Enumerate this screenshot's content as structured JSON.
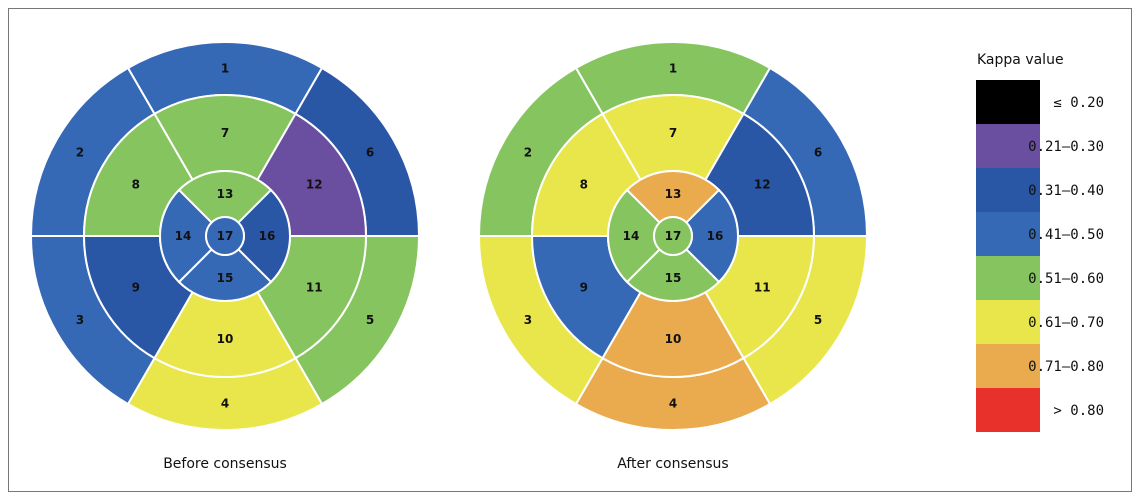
{
  "chart_data": [
    {
      "type": "bullseye",
      "caption": "Before consensus",
      "segments": [
        {
          "segment": "1",
          "category": "0.41–0.50"
        },
        {
          "segment": "2",
          "category": "0.41–0.50"
        },
        {
          "segment": "3",
          "category": "0.41–0.50"
        },
        {
          "segment": "4",
          "category": "0.61–0.70"
        },
        {
          "segment": "5",
          "category": "0.51–0.60"
        },
        {
          "segment": "6",
          "category": "0.31–0.40"
        },
        {
          "segment": "7",
          "category": "0.51–0.60"
        },
        {
          "segment": "8",
          "category": "0.51–0.60"
        },
        {
          "segment": "9",
          "category": "0.31–0.40"
        },
        {
          "segment": "10",
          "category": "0.61–0.70"
        },
        {
          "segment": "11",
          "category": "0.51–0.60"
        },
        {
          "segment": "12",
          "category": "0.21–0.30"
        },
        {
          "segment": "13",
          "category": "0.51–0.60"
        },
        {
          "segment": "14",
          "category": "0.41–0.50"
        },
        {
          "segment": "15",
          "category": "0.41–0.50"
        },
        {
          "segment": "16",
          "category": "0.31–0.40"
        },
        {
          "segment": "17",
          "category": "0.41–0.50"
        }
      ]
    },
    {
      "type": "bullseye",
      "caption": "After consensus",
      "segments": [
        {
          "segment": "1",
          "category": "0.51–0.60"
        },
        {
          "segment": "2",
          "category": "0.51–0.60"
        },
        {
          "segment": "3",
          "category": "0.61–0.70"
        },
        {
          "segment": "4",
          "category": "0.71–0.80"
        },
        {
          "segment": "5",
          "category": "0.61–0.70"
        },
        {
          "segment": "6",
          "category": "0.41–0.50"
        },
        {
          "segment": "7",
          "category": "0.61–0.70"
        },
        {
          "segment": "8",
          "category": "0.61–0.70"
        },
        {
          "segment": "9",
          "category": "0.41–0.50"
        },
        {
          "segment": "10",
          "category": "0.71–0.80"
        },
        {
          "segment": "11",
          "category": "0.61–0.70"
        },
        {
          "segment": "12",
          "category": "0.31–0.40"
        },
        {
          "segment": "13",
          "category": "0.71–0.80"
        },
        {
          "segment": "14",
          "category": "0.51–0.60"
        },
        {
          "segment": "15",
          "category": "0.51–0.60"
        },
        {
          "segment": "16",
          "category": "0.41–0.50"
        },
        {
          "segment": "17",
          "category": "0.51–0.60"
        }
      ]
    }
  ],
  "legend": {
    "title": "Kappa value",
    "items": [
      {
        "label": "≤ 0.20",
        "color": "#000000"
      },
      {
        "label": "0.21–0.30",
        "color": "#6a4fa0"
      },
      {
        "label": "0.31–0.40",
        "color": "#2a56a6"
      },
      {
        "label": "0.41–0.50",
        "color": "#3569b6"
      },
      {
        "label": "0.51–0.60",
        "color": "#86c460"
      },
      {
        "label": "0.61–0.70",
        "color": "#e8e64a"
      },
      {
        "label": "0.71–0.80",
        "color": "#eaab4f"
      },
      {
        "label": "> 0.80",
        "color": "#e8312a"
      }
    ]
  }
}
